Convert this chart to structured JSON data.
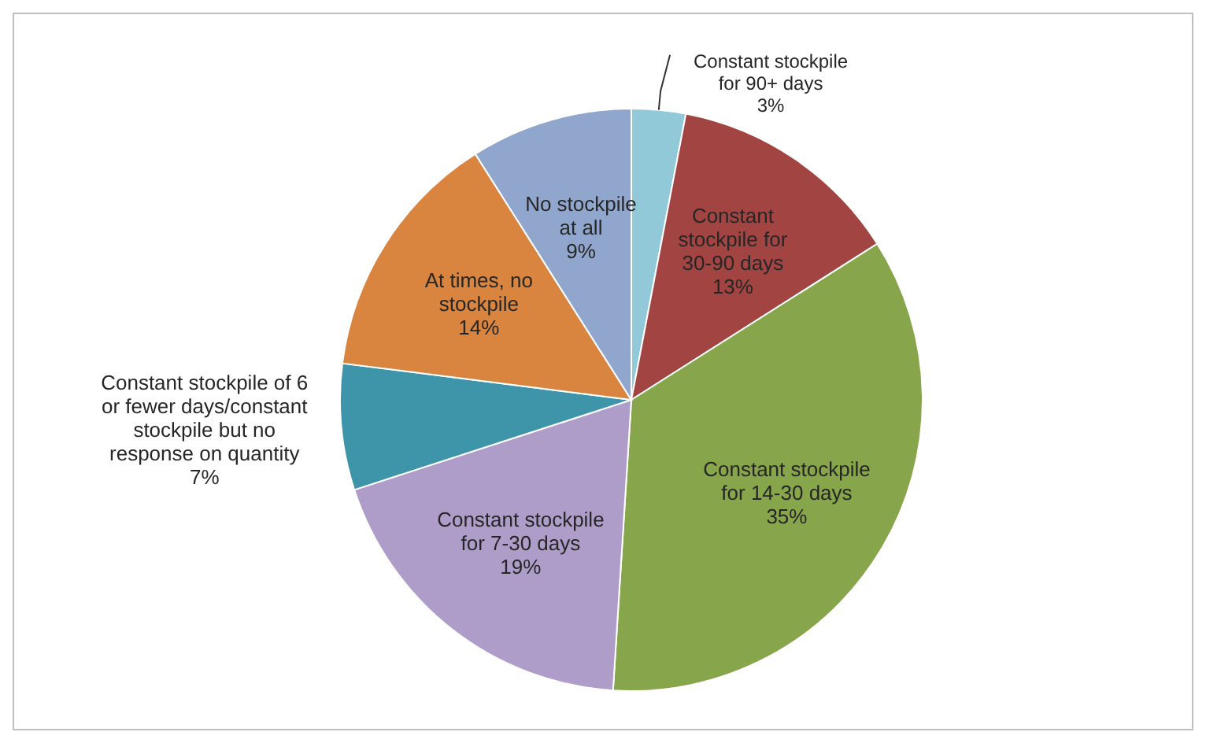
{
  "chart_data": {
    "type": "pie",
    "categories": [
      "Constant stockpile for 90+ days",
      "Constant stockpile for 30-90 days",
      "Constant stockpile for 14-30 days",
      "Constant stockpile for 7-30 days",
      "Constant stockpile of 6 or fewer days/constant stockpile but no response on quantity",
      "At times, no stockpile",
      "No stockpile at all"
    ],
    "values": [
      3,
      13,
      35,
      19,
      7,
      14,
      9
    ],
    "value_labels": [
      "3%",
      "13%",
      "35%",
      "19%",
      "7%",
      "14%",
      "9%"
    ],
    "colors": [
      "#92c9d9",
      "#a24442",
      "#87a54b",
      "#ae9dc9",
      "#3e94a9",
      "#d9843f",
      "#91a6cc"
    ],
    "legend": false
  }
}
